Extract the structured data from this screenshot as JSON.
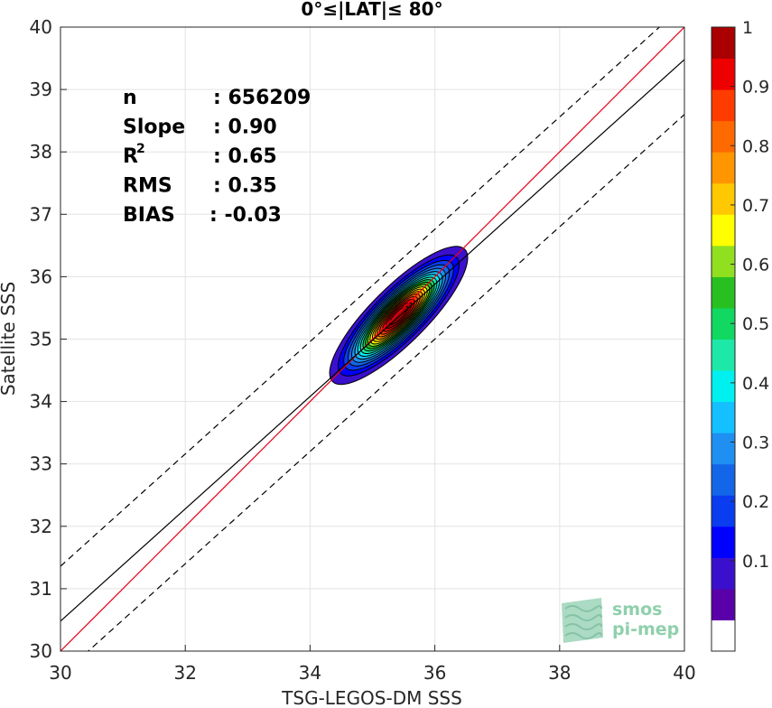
{
  "chart_data": {
    "type": "contour",
    "title": "0°≤|LAT|≤ 80°",
    "xlabel": "TSG-LEGOS-DM SSS",
    "ylabel": "Satellite SSS",
    "xlim": [
      30,
      40
    ],
    "ylim": [
      30,
      40
    ],
    "x_ticks": [
      "30",
      "32",
      "34",
      "36",
      "38",
      "40"
    ],
    "y_ticks": [
      "30",
      "31",
      "32",
      "33",
      "34",
      "35",
      "36",
      "37",
      "38",
      "39",
      "40"
    ],
    "grid": true,
    "stats": [
      {
        "label": "n",
        "value": ": 656209"
      },
      {
        "label": "Slope",
        "value": ": 0.90"
      },
      {
        "label": "R",
        "sup": "2",
        "value": ": 0.65"
      },
      {
        "label": "RMS",
        "value": ": 0.35"
      },
      {
        "label": "BIAS",
        "value": ": -0.03"
      }
    ],
    "lines": [
      {
        "role": "one-to-one",
        "color": "#e8001a",
        "style": "solid",
        "x": [
          30,
          40
        ],
        "y": [
          30,
          40
        ]
      },
      {
        "role": "regression",
        "color": "#000000",
        "style": "solid",
        "x": [
          30,
          40
        ],
        "y": [
          30.48,
          39.48
        ]
      },
      {
        "role": "upper-bound",
        "color": "#000000",
        "style": "dashed",
        "x": [
          30,
          40
        ],
        "y": [
          31.36,
          40.36
        ]
      },
      {
        "role": "lower-bound",
        "color": "#000000",
        "style": "dashed",
        "x": [
          30,
          40
        ],
        "y": [
          29.6,
          38.6
        ]
      }
    ],
    "density": {
      "center": [
        35.42,
        35.38
      ],
      "semi_major": 1.5,
      "semi_minor": 0.45,
      "angle_deg": 45,
      "levels": [
        0.05,
        0.1,
        0.15,
        0.2,
        0.25,
        0.3,
        0.35,
        0.4,
        0.45,
        0.5,
        0.55,
        0.6,
        0.65,
        0.7,
        0.75,
        0.8,
        0.85,
        0.9,
        0.95
      ]
    },
    "colorbar": {
      "ticks": [
        "0.1",
        "0.2",
        "0.3",
        "0.4",
        "0.5",
        "0.6",
        "0.7",
        "0.8",
        "0.9",
        "1"
      ],
      "colors": [
        "#ffffff",
        "#5a00a8",
        "#3a10cc",
        "#0000ff",
        "#0a3cf0",
        "#1466e8",
        "#1f90f2",
        "#14c0ff",
        "#00f0f0",
        "#1ee8a8",
        "#10d860",
        "#28c020",
        "#90e020",
        "#ffff00",
        "#ffc800",
        "#ff9600",
        "#ff6a00",
        "#ff3c00",
        "#ee0000",
        "#aa0000"
      ]
    }
  },
  "logo": {
    "line1": "smos",
    "line2": "pi-mep"
  }
}
